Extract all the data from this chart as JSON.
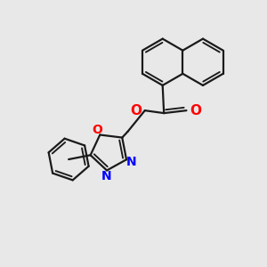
{
  "bg": "#e8e8e8",
  "bc": "#1a1a1a",
  "nc": "#0000ff",
  "oc": "#ff0000",
  "bw": 1.6,
  "figsize": [
    3.0,
    3.0
  ],
  "dpi": 100,
  "xlim": [
    0,
    10
  ],
  "ylim": [
    0,
    10
  ]
}
